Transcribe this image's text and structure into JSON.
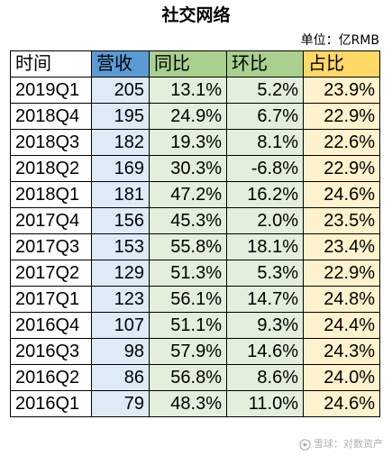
{
  "title": "社交网络",
  "unit": "单位：亿RMB",
  "headers": [
    "时间",
    "营收",
    "同比",
    "环比",
    "占比"
  ],
  "rows": [
    [
      "2019Q1",
      "205",
      "13.1%",
      "5.2%",
      "23.9%"
    ],
    [
      "2018Q4",
      "195",
      "24.9%",
      "6.7%",
      "22.9%"
    ],
    [
      "2018Q3",
      "182",
      "19.3%",
      "8.1%",
      "22.6%"
    ],
    [
      "2018Q2",
      "169",
      "30.3%",
      "-6.8%",
      "22.9%"
    ],
    [
      "2018Q1",
      "181",
      "47.2%",
      "16.2%",
      "24.6%"
    ],
    [
      "2017Q4",
      "156",
      "45.3%",
      "2.0%",
      "23.5%"
    ],
    [
      "2017Q3",
      "153",
      "55.8%",
      "18.1%",
      "23.4%"
    ],
    [
      "2017Q2",
      "129",
      "51.3%",
      "5.3%",
      "22.9%"
    ],
    [
      "2017Q1",
      "123",
      "56.1%",
      "14.7%",
      "24.8%"
    ],
    [
      "2016Q4",
      "107",
      "51.1%",
      "9.3%",
      "24.4%"
    ],
    [
      "2016Q3",
      "98",
      "57.9%",
      "14.6%",
      "24.3%"
    ],
    [
      "2016Q2",
      "86",
      "56.8%",
      "8.6%",
      "24.0%"
    ],
    [
      "2016Q1",
      "79",
      "48.3%",
      "11.0%",
      "24.6%"
    ]
  ],
  "watermark": "雪球：对数资产",
  "colors": {
    "header_revenue": "#5b9bd5",
    "header_growth": "#a9d08e",
    "header_share": "#ffd966",
    "body_revenue": "#ddebf7",
    "body_growth": "#e2efda",
    "body_share": "#fff2cc"
  }
}
